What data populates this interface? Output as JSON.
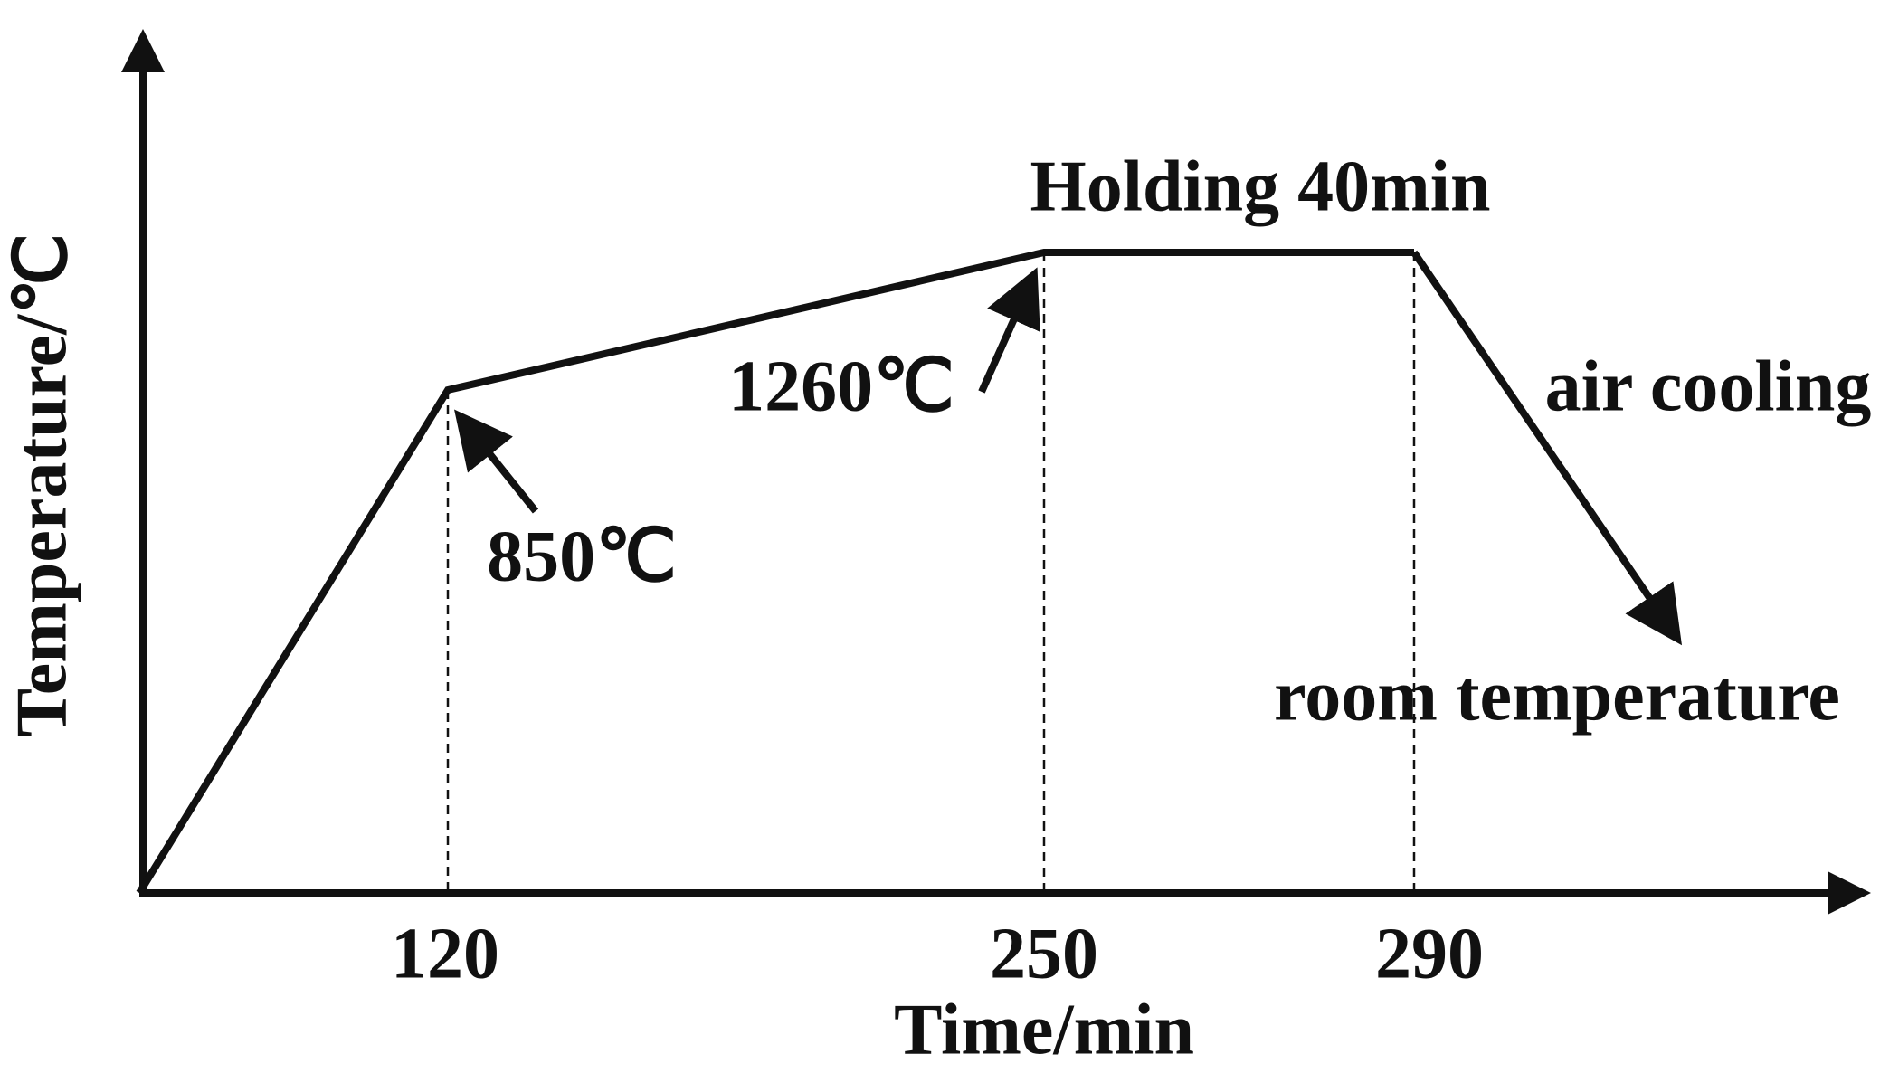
{
  "axes": {
    "y_label": "Temperature/℃",
    "x_label": "Time/min"
  },
  "time_marks": [
    "120",
    "250",
    "290"
  ],
  "annotations": {
    "first_point": "850℃",
    "second_point": "1260℃",
    "holding": "Holding 40min",
    "cooling": "air cooling",
    "final": "room temperature"
  }
}
